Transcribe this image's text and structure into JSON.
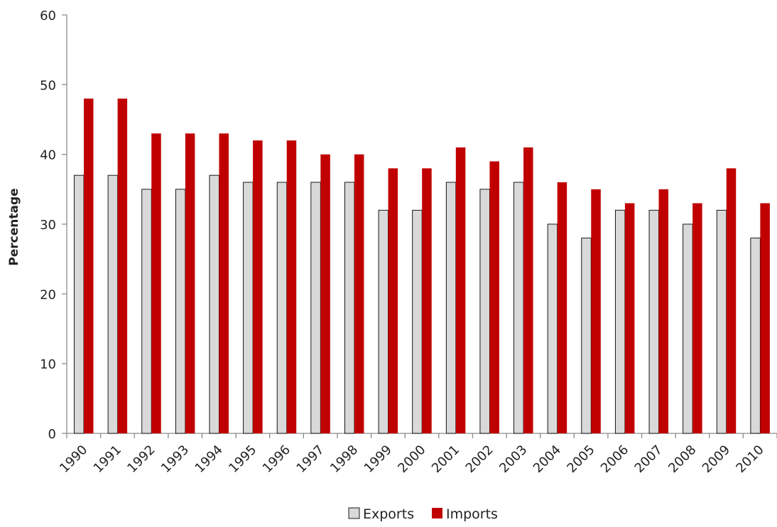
{
  "chart_data": {
    "type": "bar",
    "title": "",
    "xlabel": "",
    "ylabel": "Percentage",
    "ylim": [
      0,
      60
    ],
    "yticks": [
      0,
      10,
      20,
      30,
      40,
      50,
      60
    ],
    "grid": false,
    "legend_position": "bottom",
    "categories": [
      "1990",
      "1991",
      "1992",
      "1993",
      "1994",
      "1995",
      "1996",
      "1997",
      "1998",
      "1999",
      "2000",
      "2001",
      "2002",
      "2003",
      "2004",
      "2005",
      "2006",
      "2007",
      "2008",
      "2009",
      "2010"
    ],
    "series": [
      {
        "name": "Exports",
        "color": "#d9d9d9",
        "values": [
          37,
          37,
          35,
          35,
          37,
          36,
          36,
          36,
          36,
          32,
          32,
          36,
          35,
          36,
          30,
          28,
          32,
          32,
          30,
          32,
          28
        ]
      },
      {
        "name": "Imports",
        "color": "#c00000",
        "values": [
          48,
          48,
          43,
          43,
          43,
          42,
          42,
          40,
          40,
          38,
          38,
          41,
          39,
          41,
          36,
          35,
          33,
          35,
          33,
          38,
          33
        ]
      }
    ]
  }
}
